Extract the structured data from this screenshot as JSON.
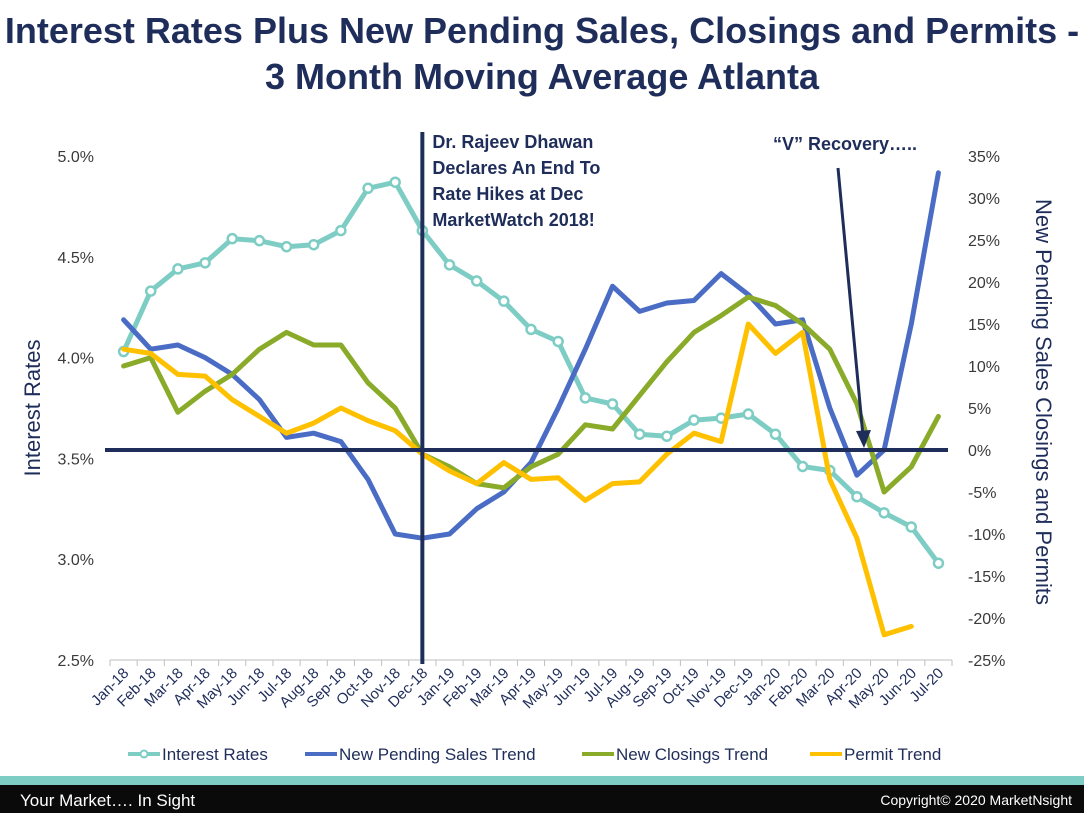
{
  "title": "Interest Rates Plus New Pending Sales, Closings and Permits - 3 Month Moving Average Atlanta",
  "chart_data": {
    "type": "line",
    "title": "Interest Rates Plus New Pending Sales, Closings and Permits - 3 Month Moving Average Atlanta",
    "categories": [
      "Jan-18",
      "Feb-18",
      "Mar-18",
      "Apr-18",
      "May-18",
      "Jun-18",
      "Jul-18",
      "Aug-18",
      "Sep-18",
      "Oct-18",
      "Nov-18",
      "Dec-18",
      "Jan-19",
      "Feb-19",
      "Mar-19",
      "Apr-19",
      "May-19",
      "Jun-19",
      "Jul-19",
      "Aug-19",
      "Sep-19",
      "Oct-19",
      "Nov-19",
      "Dec-19",
      "Jan-20",
      "Feb-20",
      "Mar-20",
      "Apr-20",
      "May-20",
      "Jun-20",
      "Jul-20"
    ],
    "left_axis": {
      "label": "Interest Rates",
      "ylim": [
        2.5,
        5.0
      ],
      "ticks": [
        "2.5%",
        "3.0%",
        "3.5%",
        "4.0%",
        "4.5%",
        "5.0%"
      ]
    },
    "right_axis": {
      "label": "New Pending Sales Closings and Permits",
      "ylim": [
        -25,
        35
      ],
      "ticks": [
        "-25%",
        "-20%",
        "-15%",
        "-10%",
        "-5%",
        "0%",
        "5%",
        "10%",
        "15%",
        "20%",
        "25%",
        "30%",
        "35%"
      ]
    },
    "series": [
      {
        "name": "Interest Rates",
        "axis": "left",
        "color": "#7ecdc4",
        "marker": "circle",
        "values": [
          4.03,
          4.33,
          4.44,
          4.47,
          4.59,
          4.58,
          4.55,
          4.56,
          4.63,
          4.84,
          4.87,
          4.63,
          4.46,
          4.38,
          4.28,
          4.14,
          4.08,
          3.8,
          3.77,
          3.62,
          3.61,
          3.69,
          3.7,
          3.72,
          3.62,
          3.46,
          3.44,
          3.31,
          3.23,
          3.16,
          2.98
        ]
      },
      {
        "name": "New Pending Sales Trend",
        "axis": "right",
        "color": "#4a6cc4",
        "values": [
          15.5,
          12,
          12.5,
          11,
          9,
          6,
          1.5,
          2,
          1,
          -3.5,
          -10,
          -10.5,
          -10,
          -7,
          -5,
          -1.5,
          5,
          12,
          19.5,
          16.5,
          17.5,
          17.8,
          21,
          18.5,
          15,
          15.5,
          5,
          -3,
          0,
          15,
          33
        ]
      },
      {
        "name": "New Closings Trend",
        "axis": "right",
        "color": "#8aab2a",
        "values": [
          10,
          11,
          4.5,
          7,
          9,
          12,
          14,
          12.5,
          12.5,
          8,
          5,
          -0.5,
          -2,
          -4,
          -4.5,
          -2,
          -0.5,
          3,
          2.5,
          6.5,
          10.5,
          14,
          16,
          18.2,
          17.2,
          15,
          12,
          5.5,
          -5,
          -2,
          4
        ]
      },
      {
        "name": "Permit Trend",
        "axis": "right",
        "color": "#ffc000",
        "values": [
          12,
          11.5,
          9,
          8.8,
          6,
          4,
          2,
          3.2,
          5,
          3.5,
          2.3,
          -0.5,
          -2.5,
          -4,
          -1.5,
          -3.5,
          -3.3,
          -6,
          -4,
          -3.8,
          -0.5,
          2,
          1,
          15,
          11.5,
          14,
          -3.5,
          -10.5,
          -22,
          -21,
          null
        ]
      }
    ],
    "annotations": [
      {
        "text_lines": [
          "Dr. Rajeev Dhawan",
          "Declares An End To",
          "Rate Hikes at Dec",
          "MarketWatch 2018!"
        ]
      },
      {
        "text": "“V” Recovery….."
      }
    ],
    "legend_position": "bottom",
    "grid": false
  },
  "footer": {
    "left": "Your Market…. In Sight",
    "right": "Copyright© 2020 MarketNsight"
  }
}
